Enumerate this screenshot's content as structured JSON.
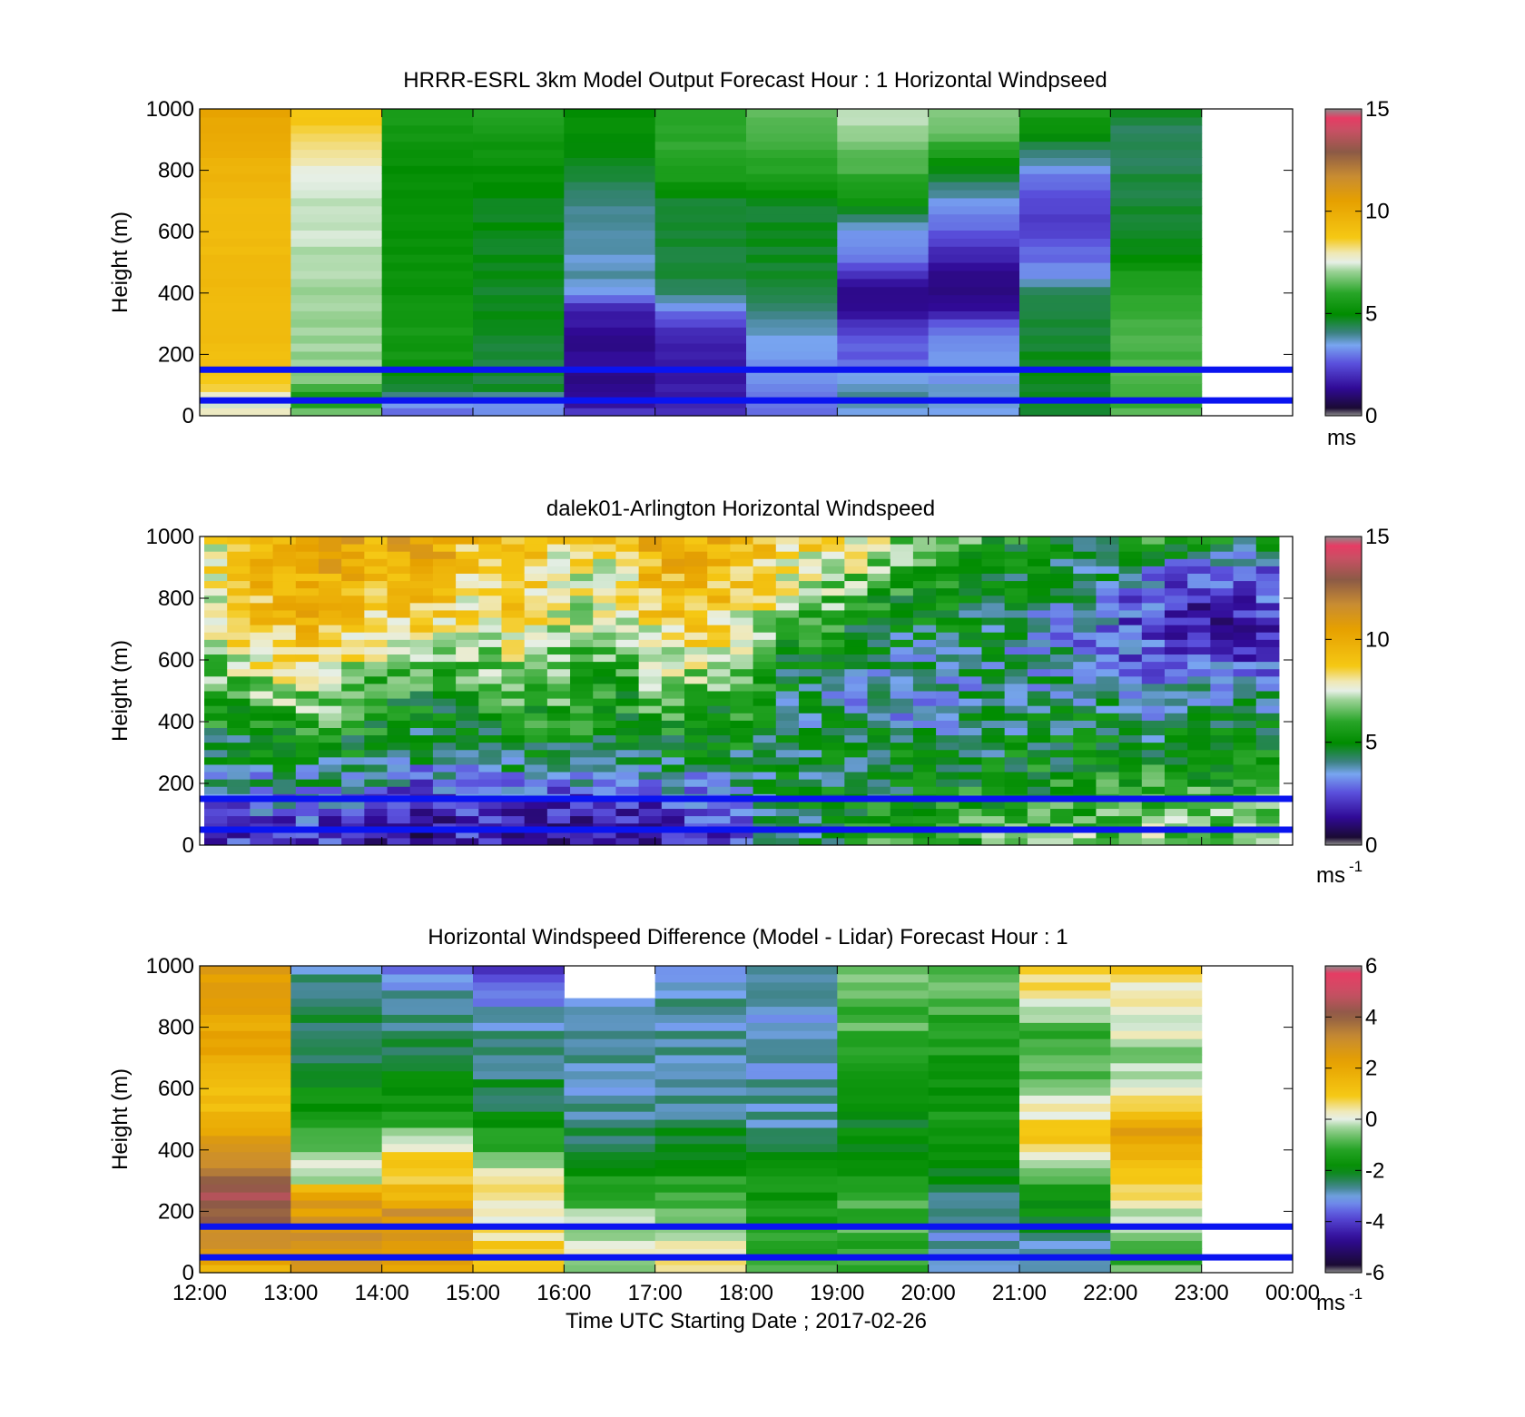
{
  "figure": {
    "time_axis_label": "Time UTC  Starting Date ; 2017-02-26",
    "x_ticks": [
      "12:00",
      "13:00",
      "14:00",
      "15:00",
      "16:00",
      "17:00",
      "18:00",
      "19:00",
      "20:00",
      "21:00",
      "22:00",
      "23:00",
      "00:00"
    ],
    "y_ticks": [
      "0",
      "200",
      "400",
      "600",
      "800",
      "1000"
    ],
    "y_label": "Height (m)",
    "band_line_color": "#0a14f0",
    "band_lines_m": [
      150,
      50
    ]
  },
  "chart_data": [
    {
      "type": "heatmap",
      "title": "HRRR-ESRL 3km Model Output   Forecast Hour : 1 Horizontal Windpseed",
      "ylabel": "Height (m)",
      "xlabel": "",
      "xlim_hours": [
        12,
        24
      ],
      "ylim": [
        0,
        1000
      ],
      "colorbar": {
        "min": 0,
        "max": 15,
        "ticks": [
          "0",
          "5",
          "10",
          "15"
        ],
        "unit": "ms"
      },
      "grid": false,
      "columns_hours_start": [
        12,
        13,
        14,
        15,
        16,
        17,
        18,
        19,
        20,
        21,
        22
      ],
      "column_width_hours": 1,
      "height_levels_m": [
        20,
        50,
        80,
        120,
        160,
        200,
        250,
        300,
        350,
        400,
        450,
        500,
        600,
        700,
        800,
        900,
        1000
      ],
      "values": [
        [
          8.0,
          7.2,
          8.5,
          8.8,
          9.0,
          9.2,
          9.2,
          9.2,
          9.3,
          9.3,
          9.3,
          9.3,
          9.3,
          9.3,
          9.6,
          10.0,
          10.3
        ],
        [
          6.5,
          5.2,
          6.0,
          6.8,
          7.0,
          7.0,
          7.0,
          7.1,
          7.1,
          7.1,
          7.2,
          7.2,
          7.3,
          7.3,
          7.6,
          8.3,
          9.0
        ],
        [
          3.0,
          3.5,
          4.6,
          4.7,
          5.4,
          5.4,
          5.4,
          5.5,
          5.3,
          5.2,
          5.2,
          5.2,
          5.1,
          5.1,
          5.1,
          5.4,
          5.8
        ],
        [
          3.2,
          3.3,
          4.6,
          4.6,
          4.6,
          4.6,
          4.6,
          4.7,
          4.7,
          4.7,
          4.7,
          4.8,
          4.8,
          4.8,
          5.1,
          5.4,
          5.8
        ],
        [
          2.2,
          1.2,
          1.2,
          1.2,
          1.3,
          1.3,
          1.3,
          1.5,
          1.8,
          3.3,
          3.8,
          3.6,
          4.0,
          4.0,
          4.6,
          5.0,
          5.1
        ],
        [
          2.0,
          1.5,
          1.6,
          1.6,
          1.7,
          1.8,
          1.8,
          2.2,
          3.2,
          4.2,
          4.4,
          4.6,
          4.7,
          4.7,
          5.8,
          6.0,
          6.1
        ],
        [
          2.8,
          2.9,
          3.0,
          3.1,
          3.3,
          3.3,
          3.5,
          3.8,
          4.3,
          4.4,
          4.6,
          4.7,
          4.7,
          4.7,
          6.0,
          6.2,
          6.5
        ],
        [
          3.6,
          3.9,
          4.0,
          3.5,
          3.2,
          2.7,
          2.6,
          2.0,
          1.4,
          1.3,
          1.6,
          3.0,
          3.4,
          5.4,
          6.2,
          6.8,
          7.3
        ],
        [
          3.5,
          3.6,
          3.6,
          3.4,
          3.3,
          3.2,
          3.2,
          2.5,
          1.4,
          1.2,
          1.2,
          1.5,
          2.7,
          3.5,
          4.8,
          6.3,
          7.0
        ],
        [
          4.6,
          4.7,
          4.8,
          4.8,
          4.7,
          4.7,
          4.7,
          4.6,
          4.6,
          4.5,
          3.2,
          3.0,
          2.3,
          2.3,
          3.3,
          4.7,
          5.9
        ],
        [
          6.3,
          6.2,
          6.3,
          6.3,
          6.3,
          6.3,
          6.3,
          6.3,
          6.2,
          6.0,
          5.7,
          5.0,
          4.8,
          4.6,
          4.4,
          4.3,
          4.6
        ]
      ]
    },
    {
      "type": "heatmap",
      "title": "dalek01-Arlington  Horizontal Windspeed",
      "ylabel": "Height (m)",
      "xlabel": "",
      "xlim_hours": [
        12,
        24
      ],
      "ylim": [
        0,
        1000
      ],
      "colorbar": {
        "min": 0,
        "max": 15,
        "ticks": [
          "0",
          "5",
          "10",
          "15"
        ],
        "unit": "ms-1"
      },
      "grid": false,
      "height_levels_m": [
        50,
        150,
        300,
        450,
        600,
        750,
        900,
        1000
      ],
      "anchor_hours": [
        12.0,
        12.5,
        13.0,
        13.5,
        14.0,
        14.5,
        15.0,
        15.5,
        16.0,
        16.5,
        17.0,
        17.5,
        18.0,
        18.5,
        19.0,
        19.5,
        20.0,
        20.5,
        21.0,
        21.5,
        22.0,
        22.5,
        23.0,
        23.5,
        23.85
      ],
      "anchor_values": [
        [
          2.5,
          3.5,
          4.8,
          5.5,
          6.5,
          7.0,
          7.2,
          7.5
        ],
        [
          2.0,
          3.0,
          4.5,
          5.8,
          7.5,
          8.8,
          9.2,
          9.5
        ],
        [
          2.2,
          3.2,
          4.8,
          6.5,
          8.5,
          9.5,
          9.8,
          10.0
        ],
        [
          2.0,
          3.0,
          5.0,
          6.5,
          8.0,
          9.6,
          10.0,
          10.3
        ],
        [
          1.5,
          2.5,
          4.8,
          5.5,
          6.8,
          8.5,
          9.5,
          10.0
        ],
        [
          1.0,
          2.0,
          4.2,
          5.0,
          7.0,
          8.8,
          10.2,
          11.0
        ],
        [
          2.0,
          3.0,
          4.5,
          5.5,
          6.5,
          7.8,
          8.5,
          9.0
        ],
        [
          1.5,
          2.5,
          4.6,
          5.8,
          7.5,
          8.8,
          9.2,
          9.5
        ],
        [
          1.2,
          2.2,
          4.8,
          6.0,
          6.8,
          7.5,
          8.0,
          8.5
        ],
        [
          1.5,
          2.8,
          4.6,
          5.2,
          6.0,
          7.0,
          8.0,
          8.5
        ],
        [
          1.5,
          2.5,
          4.8,
          6.0,
          7.2,
          8.8,
          9.5,
          10.0
        ],
        [
          2.0,
          3.0,
          4.8,
          5.6,
          7.5,
          9.0,
          9.6,
          9.8
        ],
        [
          3.0,
          4.0,
          4.8,
          5.5,
          6.8,
          8.0,
          8.8,
          9.2
        ],
        [
          4.0,
          4.5,
          4.6,
          4.2,
          5.0,
          6.5,
          8.0,
          8.8
        ],
        [
          4.8,
          4.8,
          4.6,
          3.8,
          4.5,
          6.0,
          7.5,
          8.3
        ],
        [
          5.8,
          5.0,
          4.8,
          3.5,
          3.8,
          5.0,
          6.8,
          7.5
        ],
        [
          6.0,
          5.2,
          4.6,
          3.6,
          3.8,
          4.8,
          5.8,
          6.5
        ],
        [
          6.0,
          5.5,
          4.8,
          3.8,
          4.2,
          4.6,
          5.5,
          6.0
        ],
        [
          6.2,
          5.5,
          4.8,
          4.0,
          3.8,
          4.2,
          4.8,
          5.5
        ],
        [
          6.5,
          5.8,
          4.8,
          4.5,
          3.6,
          3.5,
          4.6,
          5.0
        ],
        [
          6.5,
          5.8,
          5.0,
          4.5,
          3.0,
          2.8,
          4.0,
          5.5
        ],
        [
          6.8,
          6.0,
          5.0,
          3.8,
          2.6,
          2.2,
          3.5,
          7.5
        ],
        [
          6.5,
          6.0,
          5.0,
          4.2,
          2.4,
          1.5,
          2.5,
          5.0
        ],
        [
          6.8,
          6.2,
          5.2,
          4.0,
          2.5,
          1.8,
          2.6,
          5.5
        ],
        [
          6.5,
          6.0,
          5.0,
          4.0,
          2.6,
          2.4,
          3.0,
          5.0
        ]
      ]
    },
    {
      "type": "heatmap",
      "title": "Horizontal Windspeed Difference (Model - Lidar) Forecast Hour : 1",
      "ylabel": "Height (m)",
      "xlabel": "Time UTC  Starting Date ; 2017-02-26",
      "xlim_hours": [
        12,
        24
      ],
      "ylim": [
        0,
        1000
      ],
      "colorbar": {
        "min": -6,
        "max": 6,
        "ticks": [
          "-6",
          "-4",
          "-2",
          "0",
          "2",
          "4",
          "6"
        ],
        "unit": "ms-1"
      },
      "grid": false,
      "columns_hours_start": [
        12,
        13,
        14,
        15,
        16,
        17,
        18,
        19,
        20,
        21,
        22
      ],
      "column_width_hours": 1,
      "height_levels_m": [
        20,
        50,
        100,
        150,
        200,
        250,
        300,
        350,
        400,
        450,
        500,
        600,
        700,
        800,
        900,
        1000
      ],
      "values": [
        [
          2.0,
          3.0,
          3.5,
          3.5,
          4.5,
          4.5,
          4.0,
          3.5,
          3.0,
          2.0,
          1.5,
          1.3,
          2.0,
          2.0,
          2.5,
          2.5
        ],
        [
          2.5,
          3.0,
          3.0,
          3.0,
          2.5,
          2.5,
          0.0,
          0.0,
          -0.5,
          -1.0,
          -1.5,
          -2.0,
          -2.5,
          -2.6,
          -2.8,
          -2.8
        ],
        [
          2.5,
          2.5,
          2.8,
          3.0,
          3.0,
          1.5,
          1.0,
          0.8,
          0.5,
          -0.5,
          -1.5,
          -2.0,
          -2.5,
          -2.6,
          -2.8,
          -3.5
        ],
        [
          1.0,
          1.0,
          0.8,
          0.5,
          0.3,
          0.5,
          0.3,
          -0.5,
          -1.0,
          -1.5,
          -2.0,
          -2.5,
          -2.7,
          -3.0,
          -3.5,
          -5.0
        ],
        [
          -0.5,
          -0.2,
          0.0,
          -0.3,
          -0.5,
          -1.0,
          -1.5,
          -2.0,
          -2.5,
          -2.7,
          -2.8,
          -2.9,
          -3.0,
          -3.0,
          -3.3,
          null
        ],
        [
          0.5,
          0.3,
          0.0,
          -0.2,
          -0.5,
          -1.0,
          -1.5,
          -2.0,
          -2.3,
          -2.5,
          -2.6,
          -2.7,
          -2.8,
          -2.9,
          -3.0,
          -3.1
        ],
        [
          -1.0,
          -1.5,
          -1.5,
          -1.5,
          -1.5,
          -1.8,
          -1.5,
          -1.5,
          -2.5,
          -2.8,
          -2.9,
          -3.0,
          -3.0,
          -3.0,
          -3.0,
          -3.0
        ],
        [
          -1.0,
          -1.0,
          -1.2,
          -1.0,
          -1.0,
          -1.2,
          -1.5,
          -1.5,
          -1.8,
          -2.0,
          -2.0,
          -1.5,
          -1.2,
          -1.0,
          -1.0,
          -0.8
        ],
        [
          -3.0,
          -3.2,
          -3.0,
          -3.0,
          -3.0,
          -2.8,
          -2.5,
          -2.0,
          -1.5,
          -1.5,
          -1.6,
          -1.8,
          -1.5,
          -1.3,
          -1.0,
          -0.8
        ],
        [
          -3.0,
          -3.0,
          -2.8,
          -2.5,
          -2.0,
          -1.5,
          -1.0,
          0.0,
          0.5,
          1.0,
          0.5,
          -0.5,
          -1.0,
          -1.0,
          0.2,
          1.2
        ],
        [
          -1.0,
          -1.0,
          -0.8,
          -0.5,
          0.0,
          0.5,
          1.0,
          1.5,
          2.0,
          2.5,
          1.5,
          0.5,
          -0.5,
          0.0,
          0.3,
          0.8
        ]
      ]
    }
  ]
}
